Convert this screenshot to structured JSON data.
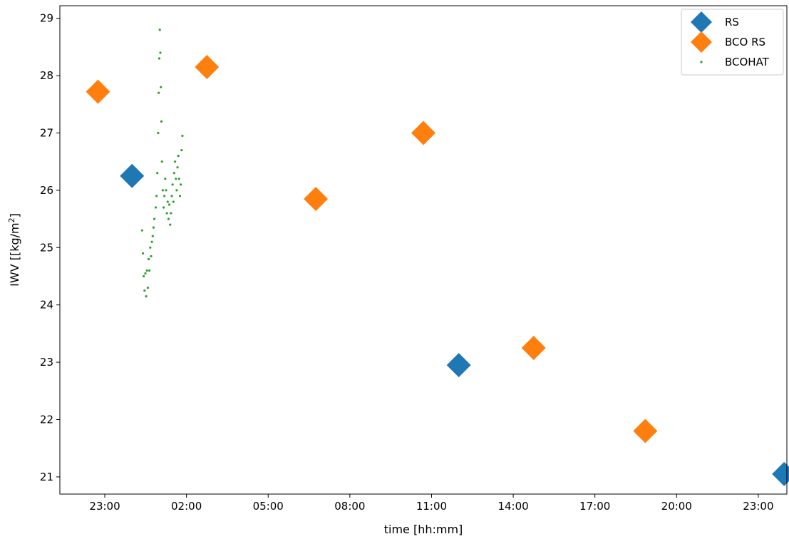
{
  "chart_data": {
    "type": "scatter",
    "xlabel": "time [hh:mm]",
    "ylabel_main": "IWV [[kg/m",
    "ylabel_sup": "2",
    "ylabel_end": "]",
    "x_unit": "hours",
    "xlim": [
      21.35,
      48.05
    ],
    "ylim": [
      20.7,
      29.22
    ],
    "x_ticks": [
      {
        "value": 23,
        "label": "23:00"
      },
      {
        "value": 26,
        "label": "02:00"
      },
      {
        "value": 29,
        "label": "05:00"
      },
      {
        "value": 32,
        "label": "08:00"
      },
      {
        "value": 35,
        "label": "11:00"
      },
      {
        "value": 38,
        "label": "14:00"
      },
      {
        "value": 41,
        "label": "17:00"
      },
      {
        "value": 44,
        "label": "20:00"
      },
      {
        "value": 47,
        "label": "23:00"
      }
    ],
    "y_ticks": [
      21,
      22,
      23,
      24,
      25,
      26,
      27,
      28,
      29
    ],
    "legend_position": "top-right",
    "series": [
      {
        "name": "RS",
        "color": "#1f77b4",
        "marker": "diamond",
        "points": [
          [
            24.0,
            26.25
          ],
          [
            36.0,
            22.95
          ],
          [
            47.95,
            21.05
          ]
        ]
      },
      {
        "name": "BCO RS",
        "color": "#ff7f0e",
        "marker": "diamond",
        "points": [
          [
            22.75,
            27.72
          ],
          [
            26.75,
            28.15
          ],
          [
            30.75,
            25.85
          ],
          [
            34.7,
            27.0
          ],
          [
            38.75,
            23.25
          ],
          [
            42.85,
            21.8
          ]
        ]
      },
      {
        "name": "BCOHAT",
        "color": "#2ca02c",
        "marker": "dot",
        "points": [
          [
            24.37,
            25.3
          ],
          [
            24.4,
            24.9
          ],
          [
            24.43,
            24.5
          ],
          [
            24.46,
            24.25
          ],
          [
            24.49,
            24.55
          ],
          [
            24.52,
            24.15
          ],
          [
            24.55,
            24.6
          ],
          [
            24.58,
            24.3
          ],
          [
            24.61,
            24.8
          ],
          [
            24.64,
            24.6
          ],
          [
            24.67,
            25.0
          ],
          [
            24.7,
            24.85
          ],
          [
            24.73,
            25.1
          ],
          [
            24.76,
            25.2
          ],
          [
            24.79,
            25.35
          ],
          [
            24.82,
            25.5
          ],
          [
            24.87,
            25.7
          ],
          [
            24.9,
            25.9
          ],
          [
            24.93,
            26.3
          ],
          [
            24.96,
            27.0
          ],
          [
            24.98,
            27.7
          ],
          [
            25.0,
            28.3
          ],
          [
            25.02,
            28.8
          ],
          [
            25.04,
            28.4
          ],
          [
            25.06,
            27.8
          ],
          [
            25.08,
            27.2
          ],
          [
            25.1,
            26.5
          ],
          [
            25.13,
            26.0
          ],
          [
            25.16,
            25.7
          ],
          [
            25.19,
            25.9
          ],
          [
            25.22,
            26.2
          ],
          [
            25.25,
            26.0
          ],
          [
            25.28,
            25.6
          ],
          [
            25.31,
            25.8
          ],
          [
            25.34,
            25.5
          ],
          [
            25.37,
            25.75
          ],
          [
            25.4,
            25.4
          ],
          [
            25.43,
            25.6
          ],
          [
            25.46,
            25.9
          ],
          [
            25.49,
            26.1
          ],
          [
            25.52,
            25.8
          ],
          [
            25.55,
            26.3
          ],
          [
            25.58,
            26.5
          ],
          [
            25.61,
            26.2
          ],
          [
            25.64,
            26.0
          ],
          [
            25.67,
            26.4
          ],
          [
            25.7,
            26.6
          ],
          [
            25.73,
            26.2
          ],
          [
            25.76,
            25.9
          ],
          [
            25.79,
            26.1
          ],
          [
            25.82,
            26.7
          ],
          [
            25.85,
            26.95
          ]
        ]
      }
    ]
  }
}
